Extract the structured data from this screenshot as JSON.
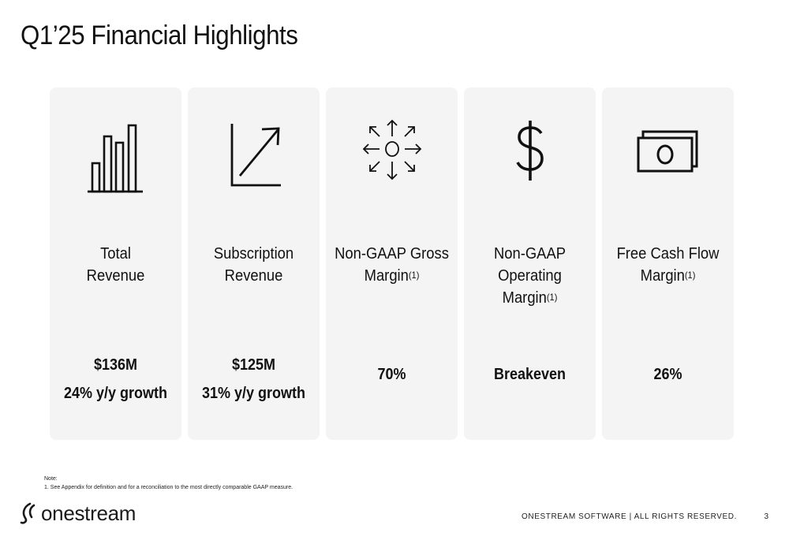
{
  "title": "Q1’25 Financial Highlights",
  "cards": [
    {
      "icon": "bar-chart-icon",
      "label_lines": [
        "Total",
        "Revenue"
      ],
      "label_sup": "",
      "values": [
        "$136M",
        "24% y/y growth"
      ]
    },
    {
      "icon": "growth-arrow-chart-icon",
      "label_lines": [
        "Subscription",
        "Revenue"
      ],
      "label_sup": "",
      "values": [
        "$125M",
        "31% y/y growth"
      ]
    },
    {
      "icon": "arrows-outward-circle-icon",
      "label_lines": [
        "Non-GAAP Gross",
        "Margin"
      ],
      "label_sup": "(1)",
      "values": [
        "70%"
      ]
    },
    {
      "icon": "dollar-sign-icon",
      "label_lines": [
        "Non-GAAP",
        "Operating",
        "Margin"
      ],
      "label_sup": "(1)",
      "values": [
        "Breakeven"
      ]
    },
    {
      "icon": "cash-bills-icon",
      "label_lines": [
        "Free Cash Flow",
        "Margin"
      ],
      "label_sup": "(1)",
      "values": [
        "26%"
      ]
    }
  ],
  "note": {
    "heading": "Note:",
    "items": [
      "1.  See Appendix for definition and for a reconciliation to the most directly comparable GAAP measure."
    ]
  },
  "logo": {
    "text": "onestream"
  },
  "footer": {
    "text": "ONESTREAM SOFTWARE  |  ALL RIGHTS RESERVED.",
    "page": "3"
  }
}
